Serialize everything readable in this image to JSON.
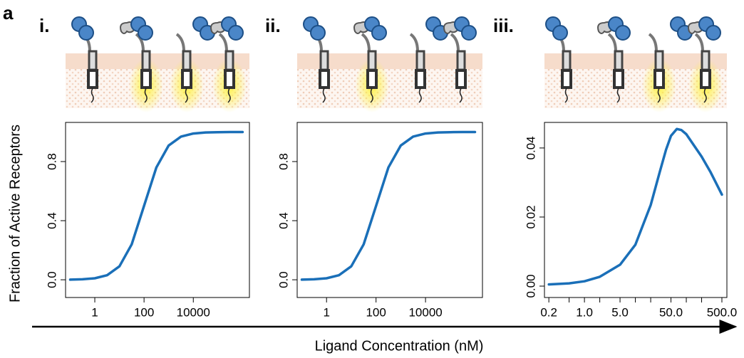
{
  "figure": {
    "panel_label": "a",
    "ylabel": "Fraction of Active Receptors",
    "xlabel": "Ligand Concentration (nM)"
  },
  "chart_data": [
    {
      "type": "line",
      "title": "i.",
      "log_x": true,
      "color": "#1a6fb8",
      "x": [
        0.1,
        0.316,
        1,
        3.16,
        10,
        31.6,
        100,
        316,
        1000,
        3162,
        10000,
        31623,
        100000,
        316228,
        1000000
      ],
      "values": [
        0.001,
        0.0032,
        0.0099,
        0.0307,
        0.0909,
        0.24,
        0.5,
        0.76,
        0.909,
        0.969,
        0.99,
        0.997,
        0.999,
        1.0,
        1.0
      ],
      "xlim": [
        0.065,
        1900000
      ],
      "xticks": [
        1,
        100,
        10000
      ],
      "ylim": [
        -0.12,
        1.065
      ],
      "yticks": [
        {
          "value": 0,
          "label": "0.0"
        },
        {
          "value": 0.4,
          "label": "0.4"
        },
        {
          "value": 0.8,
          "label": "0.8"
        }
      ]
    },
    {
      "type": "line",
      "title": "ii.",
      "log_x": true,
      "color": "#1a6fb8",
      "x": [
        0.1,
        0.316,
        1,
        3.16,
        10,
        31.6,
        100,
        316,
        1000,
        3162,
        10000,
        31623,
        100000,
        316228,
        1000000
      ],
      "values": [
        0.001,
        0.0032,
        0.0099,
        0.0307,
        0.0909,
        0.24,
        0.5,
        0.76,
        0.909,
        0.969,
        0.99,
        0.997,
        0.999,
        1.0,
        1.0
      ],
      "xlim": [
        0.065,
        2000000
      ],
      "xticks": [
        1,
        100,
        10000
      ],
      "ylim": [
        -0.12,
        1.065
      ],
      "yticks": [
        {
          "value": 0,
          "label": "0.0"
        },
        {
          "value": 0.4,
          "label": "0.4"
        },
        {
          "value": 0.8,
          "label": "0.8"
        }
      ]
    },
    {
      "type": "line",
      "title": "iii.",
      "log_x": true,
      "color": "#1a6fb8",
      "x": [
        0.2,
        0.5,
        1,
        2,
        5,
        10,
        20,
        30,
        40,
        50,
        65,
        80,
        100,
        200,
        300,
        500
      ],
      "values": [
        0.0005,
        0.0008,
        0.0014,
        0.0027,
        0.0062,
        0.012,
        0.0235,
        0.033,
        0.0395,
        0.0435,
        0.0455,
        0.0452,
        0.044,
        0.0375,
        0.033,
        0.0265
      ],
      "xlim": [
        0.164,
        627
      ],
      "xticks": [
        0.2,
        {
          "value": 1,
          "label": "1.0"
        },
        {
          "value": 5,
          "label": "5.0"
        },
        {
          "value": 50,
          "label": "50.0"
        },
        {
          "value": 500,
          "label": "500.0"
        }
      ],
      "xminorticks": [
        0.5,
        2,
        10,
        20,
        100,
        200
      ],
      "ylim": [
        -0.0033,
        0.0474
      ],
      "yticks": [
        {
          "value": 0,
          "label": "0.00"
        },
        {
          "value": 0.02,
          "label": "0.02"
        },
        {
          "value": 0.04,
          "label": "0.04"
        }
      ]
    }
  ]
}
